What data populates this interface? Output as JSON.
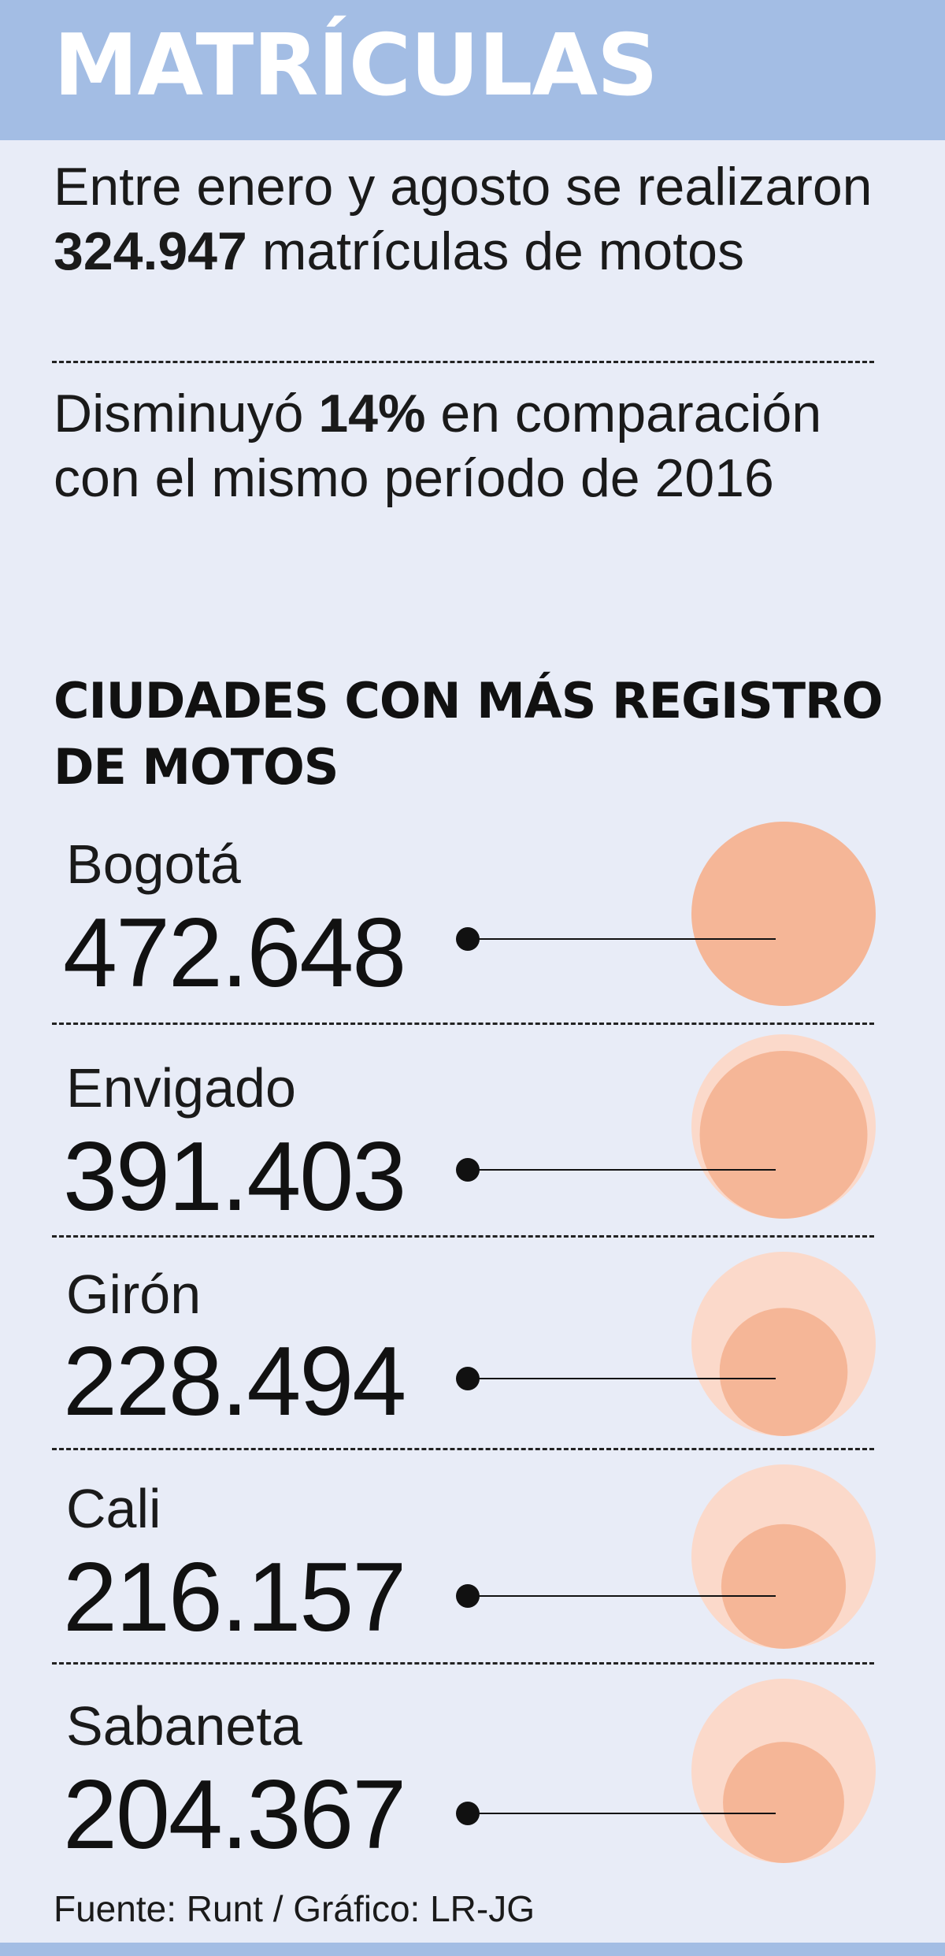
{
  "header": {
    "title": "MATRÍCULAS"
  },
  "stats": [
    {
      "before": "Entre enero y agosto se realizaron ",
      "highlight": "324.947",
      "after": " matrículas de motos"
    },
    {
      "before": "Disminuyó ",
      "highlight": "14%",
      "after": " en comparación con el mismo período de 2016"
    }
  ],
  "chart_data": {
    "type": "bubble",
    "title": "CIUDADES CON MÁS REGISTRO DE MOTOS",
    "categories": [
      "Bogotá",
      "Envigado",
      "Girón",
      "Cali",
      "Sabaneta"
    ],
    "labels": [
      "472.648",
      "391.403",
      "228.494",
      "216.157",
      "204.367"
    ],
    "values": [
      472648,
      391403,
      228494,
      216157,
      204367
    ],
    "colors": {
      "bubble": "#f5b697",
      "reference": "#fbd9ca",
      "line": "#111111"
    }
  },
  "source": "Fuente: Runt / Gráfico: LR-JG"
}
